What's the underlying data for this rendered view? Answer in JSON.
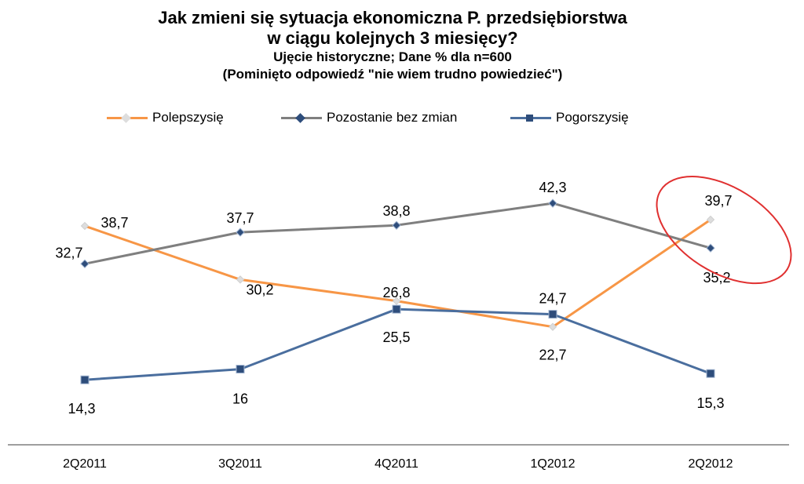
{
  "chart_data": {
    "type": "line",
    "title": "Jak zmieni się sytuacja ekonomiczna P. przedsiębiorstwa",
    "title_line2": "w ciągu kolejnych 3 miesięcy?",
    "subtitle": "Ujęcie historyczne; Dane % dla n=600",
    "note": "(Pominięto odpowiedź  \"nie wiem trudno  powiedzieć\")",
    "categories": [
      "2Q2011",
      "3Q2011",
      "4Q2011",
      "1Q2012",
      "2Q2012"
    ],
    "series": [
      {
        "name": "Polepszy się",
        "legend_label": "Polepszysię",
        "color": "#F79646",
        "values": [
          38.7,
          30.2,
          26.8,
          22.7,
          39.7
        ],
        "labels": [
          "38,7",
          "30,2",
          "26,8",
          "22,7",
          "39,7"
        ]
      },
      {
        "name": "Pozostanie bez zmian",
        "legend_label": "Pozostanie bez zmian",
        "color": "#7F7F7F",
        "values": [
          32.7,
          37.7,
          38.8,
          42.3,
          35.2
        ],
        "labels": [
          "32,7",
          "37,7",
          "38,8",
          "42,3",
          "35,2"
        ]
      },
      {
        "name": "Pogorszy się",
        "legend_label": "Pogorszysię",
        "color": "#4A6E9E",
        "values": [
          14.3,
          16,
          25.5,
          24.7,
          15.3
        ],
        "labels": [
          "14,3",
          "16",
          "25,5",
          "24,7",
          "15,3"
        ]
      }
    ],
    "legend_position": "top",
    "grid": false,
    "annotation": {
      "type": "ellipse-highlight",
      "target": "2Q2012",
      "color": "#E03030"
    }
  }
}
